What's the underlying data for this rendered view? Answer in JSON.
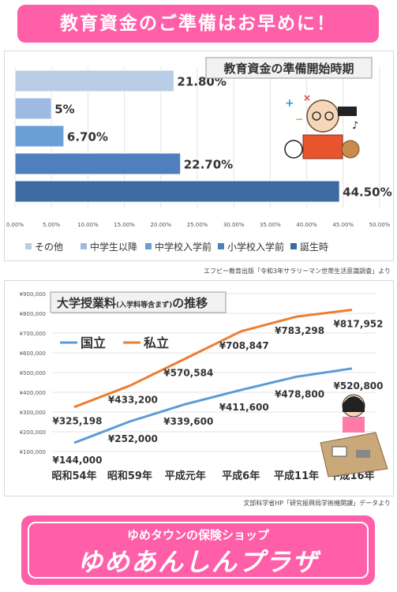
{
  "header": {
    "title": "教育資金のご準備はお早めに！"
  },
  "chart_data": [
    {
      "type": "bar",
      "orientation": "horizontal",
      "title": "教育資金の準備開始時期",
      "categories": [
        "その他",
        "中学生以降",
        "中学校入学前",
        "小学校入学前",
        "誕生時"
      ],
      "values": [
        21.8,
        5,
        6.7,
        22.7,
        44.5
      ],
      "value_labels": [
        "21.80%",
        "5%",
        "6.70%",
        "22.70%",
        "44.50%"
      ],
      "colors": [
        "#b9cce6",
        "#9dbbe2",
        "#6a9fd6",
        "#4f80bd",
        "#3d6aa1"
      ],
      "xlim": [
        0,
        50
      ],
      "x_ticks": [
        "0.00%",
        "5.00%",
        "10.00%",
        "15.00%",
        "20.00%",
        "25.00%",
        "30.00%",
        "35.00%",
        "40.00%",
        "45.00%",
        "50.00%"
      ],
      "legend_position": "bottom",
      "grid": true,
      "source": "エフピー教育出版「令和3年サラリーマン世帯生活意識調査」より"
    },
    {
      "type": "line",
      "title": "大学授業料",
      "title_note": "(入学料等含まず)",
      "title_suffix": "の推移",
      "categories": [
        "昭和54年",
        "昭和59年",
        "平成元年",
        "平成6年",
        "平成11年",
        "平成16年"
      ],
      "series": [
        {
          "name": "国立",
          "color": "#5b9bd5",
          "values": [
            144000,
            252000,
            339600,
            411600,
            478800,
            520800
          ],
          "labels": [
            "¥144,000",
            "¥252,000",
            "¥339,600",
            "¥411,600",
            "¥478,800",
            "¥520,800"
          ]
        },
        {
          "name": "私立",
          "color": "#ed7d31",
          "values": [
            325198,
            433200,
            570584,
            708847,
            783298,
            817952
          ],
          "labels": [
            "¥325,198",
            "¥433,200",
            "¥570,584",
            "¥708,847",
            "¥783,298",
            "¥817,952"
          ]
        }
      ],
      "ylim": [
        100000,
        900000
      ],
      "y_ticks": [
        "¥100,000",
        "¥200,000",
        "¥300,000",
        "¥400,000",
        "¥500,000",
        "¥600,000",
        "¥700,000",
        "¥800,000",
        "¥900,000"
      ],
      "grid": true,
      "source": "文部科学省HP「研究振興局学術機関課」データより"
    }
  ],
  "footer": {
    "subtitle": "ゆめタウンの保険ショップ",
    "title": "ゆめあんしんプラザ"
  }
}
